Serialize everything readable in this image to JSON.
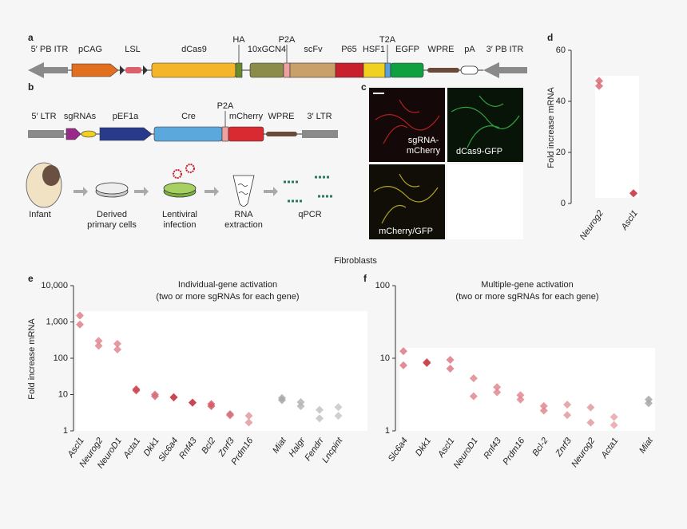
{
  "panel_labels": [
    "a",
    "b",
    "c",
    "d",
    "e",
    "f"
  ],
  "construct_a": [
    "5′ PB ITR",
    "pCAG",
    "LSL",
    "dCas9",
    "HA",
    "10xGCN4",
    "P2A",
    "scFv",
    "P65",
    "HSF1",
    "T2A",
    "EGFP",
    "WPRE",
    "pA",
    "3′ PB ITR"
  ],
  "construct_b": [
    "5′ LTR",
    "sgRNAs",
    "pEF1a",
    "Cre",
    "P2A",
    "mCherry",
    "WPRE",
    "3′ LTR"
  ],
  "workflow": [
    [
      "Infant"
    ],
    [
      "Derived",
      "primary cells"
    ],
    [
      "Lentiviral",
      "infection"
    ],
    [
      "RNA",
      "extraction"
    ],
    [
      "qPCR"
    ]
  ],
  "micrographs": [
    [
      "sgRNA-",
      "mCherry"
    ],
    [
      "dCas9-GFP"
    ],
    [
      "mCherry/GFP"
    ]
  ],
  "section_title": "Fibroblasts",
  "chart_data": [
    {
      "type": "strip",
      "ylabel": "Fold increase mRNA",
      "categories": [
        "Neurog2",
        "Ascl1"
      ],
      "values": [
        [
          48,
          46
        ],
        [
          4,
          4
        ]
      ],
      "colors": [
        "#dc6a75",
        "#cf4551"
      ],
      "ylim": [
        0,
        60
      ],
      "yticks": [
        0,
        20,
        40,
        60
      ]
    },
    {
      "type": "strip",
      "title": "Individual-gene activation",
      "subtitle": "(two or more sgRNAs for each gene)",
      "ylabel": "Fold increase mRNA",
      "log_scale": true,
      "categories": [
        "Ascl1",
        "Neurog2",
        "NeuroD1",
        "Acta1",
        "Dkk1",
        "Slc6a4",
        "Rnf43",
        "Bcl2",
        "Znrf3",
        "Prdm16",
        "Miat",
        "Halgr",
        "Fendrr",
        "Lncpint"
      ],
      "values": [
        [
          1500,
          850
        ],
        [
          300,
          220
        ],
        [
          250,
          175
        ],
        [
          14,
          13
        ],
        [
          10,
          9
        ],
        [
          8.5,
          8.3
        ],
        [
          6,
          6
        ],
        [
          5.5,
          4.8
        ],
        [
          2.9,
          2.7
        ],
        [
          2.6,
          1.7
        ],
        [
          8,
          7
        ],
        [
          6.2,
          4.8
        ],
        [
          3.8,
          2.2
        ],
        [
          4.5,
          2.6
        ]
      ],
      "colors": [
        "#e07f88",
        "#e08890",
        "#e08890",
        "#cf4a55",
        "#d66e79",
        "#c8434f",
        "#c8434f",
        "#d45a66",
        "#d8707a",
        "#e39aa0",
        "#a8a8a8",
        "#b5b5b5",
        "#c3c3c3",
        "#c8c8c8"
      ],
      "ylim": [
        1,
        10000
      ],
      "yticks": [
        1,
        10,
        100,
        {
          "value": 1000,
          "label": "1,000"
        },
        {
          "value": 10000,
          "label": "10,000"
        }
      ]
    },
    {
      "type": "strip",
      "title": "Multiple-gene activation",
      "subtitle": "(two or more sgRNAs for each gene)",
      "log_scale": true,
      "categories": [
        "Slc6a4",
        "Dkk1",
        "Ascl1",
        "NeuroD1",
        "Rnf43",
        "Prdm16",
        "Bcl-2",
        "Znrf3",
        "Neurog2",
        "Acta1",
        "Miat"
      ],
      "values": [
        [
          12.5,
          8
        ],
        [
          8.8,
          8.6
        ],
        [
          9.5,
          7.2
        ],
        [
          5.3,
          3
        ],
        [
          4,
          3.4
        ],
        [
          3.1,
          2.7
        ],
        [
          2.2,
          1.9
        ],
        [
          2.3,
          1.65
        ],
        [
          2.1,
          1.3
        ],
        [
          1.55,
          1.2
        ],
        [
          2.7,
          2.4
        ]
      ],
      "colors": [
        "#dc7a84",
        "#c8434f",
        "#dc7a84",
        "#e08890",
        "#e08890",
        "#e08890",
        "#e08890",
        "#e39aa0",
        "#e39aa0",
        "#e7a6ac",
        "#a8a8a8"
      ],
      "ylim": [
        1,
        100
      ],
      "yticks": [
        1,
        10,
        100
      ]
    }
  ]
}
